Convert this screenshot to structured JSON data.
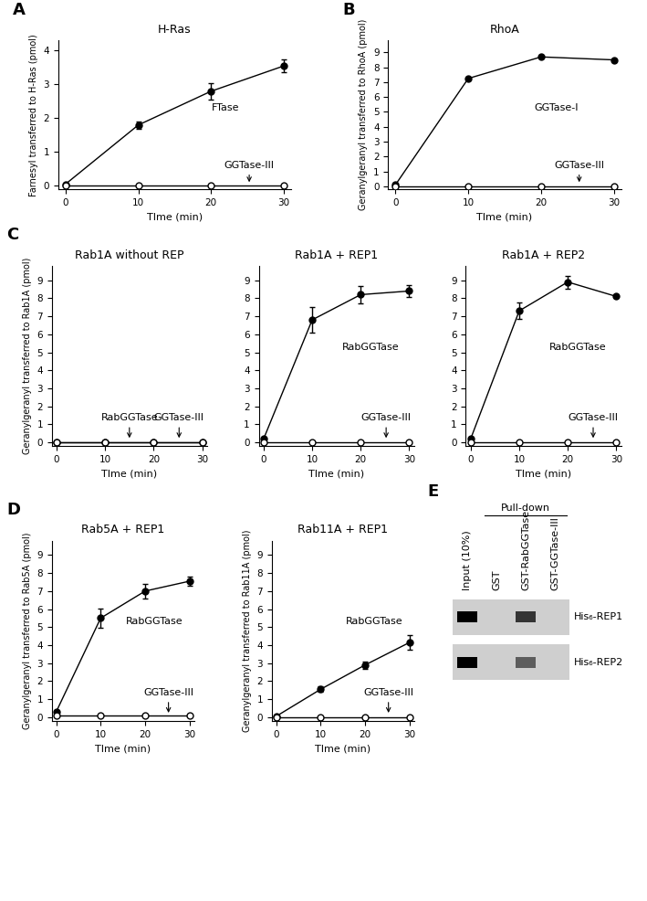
{
  "chart_data": [
    {
      "type": "line",
      "panel": "A",
      "title": "H-Ras",
      "x_label": "TIme (min)",
      "y_label": "Farnesyl transferred to H-Ras (pmol)",
      "x": [
        0,
        10,
        20,
        30
      ],
      "xlim": [
        -1,
        31
      ],
      "xticks": [
        0,
        10,
        20,
        30
      ],
      "ylim": [
        -0.1,
        4.3
      ],
      "yticks": [
        0,
        1,
        2,
        3,
        4
      ],
      "series": [
        {
          "name": "FTase",
          "color": "#000000",
          "marker": "filled",
          "values": [
            0.05,
            1.8,
            2.8,
            3.55
          ],
          "errors": [
            0,
            0.1,
            0.25,
            0.2
          ]
        },
        {
          "name": "GGTase-III",
          "color": "#000000",
          "marker": "open",
          "values": [
            0,
            0,
            0,
            0
          ]
        }
      ]
    },
    {
      "type": "line",
      "panel": "B",
      "title": "RhoA",
      "x_label": "TIme (min)",
      "y_label": "Geranylgeranyl transferred to RhoA (pmol)",
      "x": [
        0,
        10,
        20,
        30
      ],
      "xlim": [
        -1,
        31
      ],
      "xticks": [
        0,
        10,
        20,
        30
      ],
      "ylim": [
        -0.2,
        9.8
      ],
      "yticks": [
        0,
        1,
        2,
        3,
        4,
        5,
        6,
        7,
        8,
        9
      ],
      "series": [
        {
          "name": "GGTase-I",
          "color": "#000000",
          "marker": "filled",
          "values": [
            0.1,
            7.25,
            8.7,
            8.5
          ]
        },
        {
          "name": "GGTase-III",
          "color": "#000000",
          "marker": "open",
          "values": [
            0,
            0,
            0,
            0
          ]
        }
      ]
    },
    {
      "type": "line",
      "panel": "C",
      "title": "Rab1A without REP",
      "x_label": "TIme (min)",
      "y_label": "Geranylgeranyl transferred to Rab1A (pmol)",
      "x": [
        0,
        10,
        20,
        30
      ],
      "xlim": [
        -1,
        31
      ],
      "xticks": [
        0,
        10,
        20,
        30
      ],
      "ylim": [
        -0.2,
        9.8
      ],
      "yticks": [
        0,
        1,
        2,
        3,
        4,
        5,
        6,
        7,
        8,
        9
      ],
      "series": [
        {
          "name": "RabGGTase",
          "color": "#000000",
          "marker": "filled",
          "values": [
            0,
            0,
            0,
            0
          ]
        },
        {
          "name": "GGTase-III",
          "color": "#000000",
          "marker": "open",
          "values": [
            0,
            0,
            0,
            0
          ]
        }
      ]
    },
    {
      "type": "line",
      "title": "Rab1A + REP1",
      "x_label": "TIme (min)",
      "x": [
        0,
        10,
        20,
        30
      ],
      "xlim": [
        -1,
        31
      ],
      "xticks": [
        0,
        10,
        20,
        30
      ],
      "ylim": [
        -0.2,
        9.8
      ],
      "yticks": [
        0,
        1,
        2,
        3,
        4,
        5,
        6,
        7,
        8,
        9
      ],
      "series": [
        {
          "name": "RabGGTase",
          "color": "#000000",
          "marker": "filled",
          "values": [
            0.2,
            6.8,
            8.2,
            8.4
          ],
          "errors": [
            0,
            0.7,
            0.5,
            0.35
          ]
        },
        {
          "name": "GGTase-III",
          "color": "#000000",
          "marker": "open",
          "values": [
            0,
            0,
            0,
            0
          ]
        }
      ]
    },
    {
      "type": "line",
      "title": "Rab1A + REP2",
      "x_label": "TIme (min)",
      "x": [
        0,
        10,
        20,
        30
      ],
      "xlim": [
        -1,
        31
      ],
      "xticks": [
        0,
        10,
        20,
        30
      ],
      "ylim": [
        -0.2,
        9.8
      ],
      "yticks": [
        0,
        1,
        2,
        3,
        4,
        5,
        6,
        7,
        8,
        9
      ],
      "series": [
        {
          "name": "RabGGTase",
          "color": "#000000",
          "marker": "filled",
          "values": [
            0.2,
            7.3,
            8.9,
            8.1
          ],
          "errors": [
            0,
            0.45,
            0.35,
            0
          ]
        },
        {
          "name": "GGTase-III",
          "color": "#000000",
          "marker": "open",
          "values": [
            0,
            0,
            0,
            0
          ]
        }
      ]
    },
    {
      "type": "line",
      "panel": "D",
      "title": "Rab5A + REP1",
      "x_label": "TIme (min)",
      "y_label": "Geranylgeranyl transferred to Rab5A (pmol)",
      "x": [
        0,
        10,
        20,
        30
      ],
      "xlim": [
        -1,
        31
      ],
      "xticks": [
        0,
        10,
        20,
        30
      ],
      "ylim": [
        -0.2,
        9.8
      ],
      "yticks": [
        0,
        1,
        2,
        3,
        4,
        5,
        6,
        7,
        8,
        9
      ],
      "series": [
        {
          "name": "RabGGTase",
          "color": "#000000",
          "marker": "filled",
          "values": [
            0.3,
            5.5,
            7.0,
            7.55
          ],
          "errors": [
            0,
            0.55,
            0.4,
            0.25
          ]
        },
        {
          "name": "GGTase-III",
          "color": "#000000",
          "marker": "open",
          "values": [
            0.1,
            0.1,
            0.1,
            0.1
          ]
        }
      ]
    },
    {
      "type": "line",
      "title": "Rab11A + REP1",
      "x_label": "TIme (min)",
      "y_label": "Geranylgeranyl transferred to Rab11A (pmol)",
      "x": [
        0,
        10,
        20,
        30
      ],
      "xlim": [
        -1,
        31
      ],
      "xticks": [
        0,
        10,
        20,
        30
      ],
      "ylim": [
        -0.2,
        9.8
      ],
      "yticks": [
        0,
        1,
        2,
        3,
        4,
        5,
        6,
        7,
        8,
        9
      ],
      "series": [
        {
          "name": "RabGGTase",
          "color": "#000000",
          "marker": "filled",
          "values": [
            0.05,
            1.55,
            2.9,
            4.15
          ],
          "errors": [
            0,
            0.15,
            0.2,
            0.4
          ]
        },
        {
          "name": "GGTase-III",
          "color": "#000000",
          "marker": "open",
          "values": [
            0,
            0,
            0,
            0
          ]
        }
      ]
    }
  ],
  "blot": {
    "panel": "E",
    "header": "Pull-down",
    "lanes": [
      "Input (10%)",
      "GST",
      "GST-RabGGTase",
      "GST-GGTase-III"
    ],
    "rows": [
      {
        "label": "His₆-REP1",
        "bands": [
          1.0,
          0,
          0.75,
          0
        ]
      },
      {
        "label": "His₆-REP2",
        "bands": [
          1.0,
          0,
          0.55,
          0
        ]
      }
    ]
  }
}
